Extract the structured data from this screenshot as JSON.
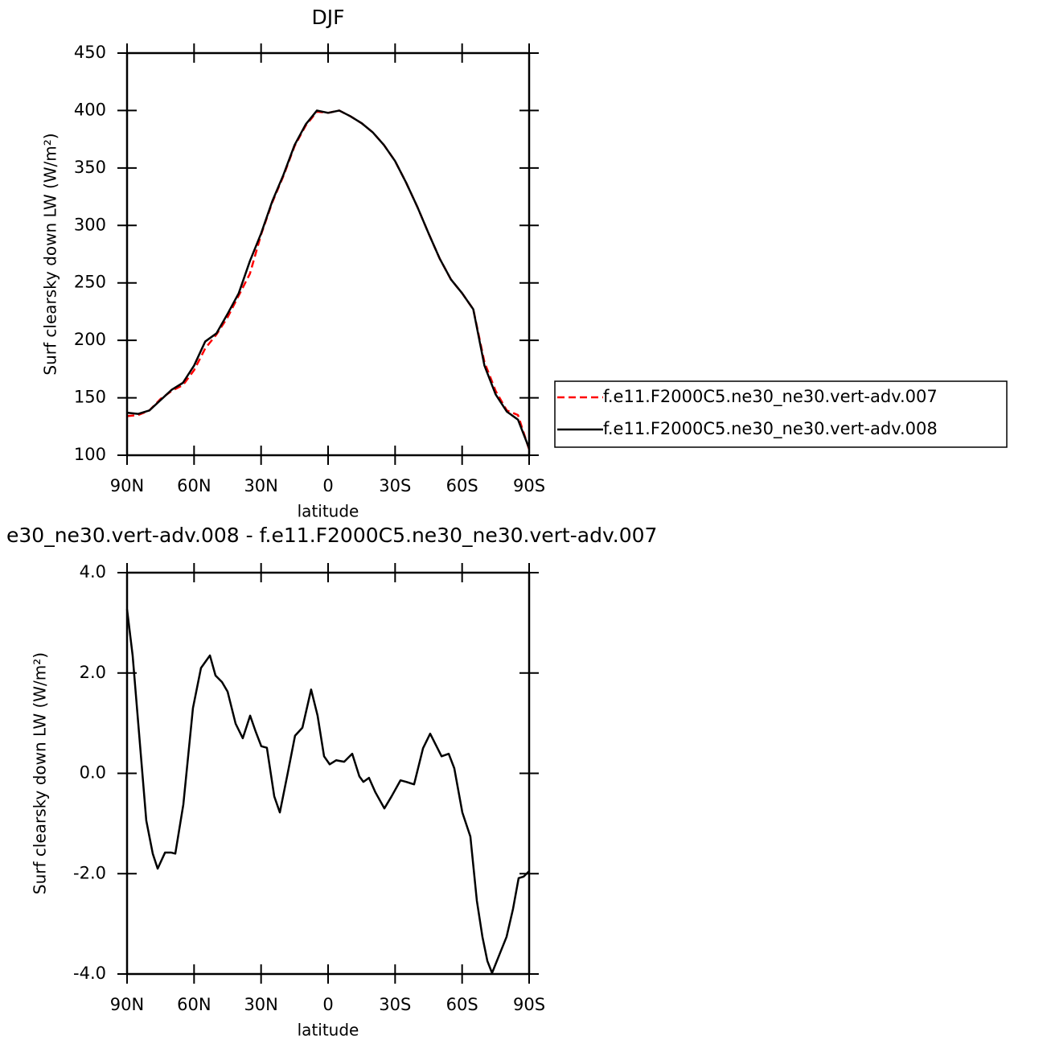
{
  "chart_data": [
    {
      "type": "line",
      "title": "DJF",
      "x_label": "latitude",
      "y_label": "Surf clearsky down LW (W/m²)",
      "xlim": [
        90,
        -90
      ],
      "ylim": [
        100,
        450
      ],
      "xticks": [
        {
          "value": 90,
          "label": "90N"
        },
        {
          "value": 60,
          "label": "60N"
        },
        {
          "value": 30,
          "label": "30N"
        },
        0,
        {
          "value": -30,
          "label": "30S"
        },
        {
          "value": -60,
          "label": "60S"
        },
        {
          "value": -90,
          "label": "90S"
        }
      ],
      "yticks": [
        100,
        150,
        200,
        250,
        300,
        350,
        400,
        450
      ],
      "legend": "right",
      "x": [
        90,
        85,
        80,
        75,
        70,
        65,
        60,
        55,
        50,
        45,
        40,
        35,
        30,
        25,
        20,
        15,
        10,
        5,
        0,
        -5,
        -10,
        -15,
        -20,
        -25,
        -30,
        -35,
        -40,
        -45,
        -50,
        -55,
        -60,
        -65,
        -70,
        -75,
        -80,
        -85,
        -90
      ],
      "series": [
        {
          "name": "f.e11.F2000C5.ne30_ne30.vert-adv.007",
          "color": "#ff0000",
          "dash": true,
          "values": [
            134,
            135,
            139,
            149,
            156,
            161,
            174,
            193,
            205,
            220,
            239,
            258,
            292,
            320,
            343,
            369,
            387,
            399,
            398,
            400,
            395,
            389,
            381,
            370,
            356,
            337,
            316,
            293,
            271,
            253,
            241,
            227,
            181,
            156,
            139,
            135,
            105
          ]
        },
        {
          "name": "f.e11.F2000C5.ne30_ne30.vert-adv.008",
          "color": "#000000",
          "dash": false,
          "values": [
            137,
            136,
            139,
            148,
            157,
            163,
            178,
            199,
            206,
            223,
            241,
            269,
            293,
            321,
            344,
            370,
            388,
            400,
            398,
            400,
            395,
            389,
            381,
            370,
            356,
            337,
            316,
            293,
            271,
            253,
            241,
            227,
            178,
            153,
            138,
            131,
            106
          ]
        }
      ]
    },
    {
      "type": "line",
      "title": "e30_ne30.vert-adv.008 - f.e11.F2000C5.ne30_ne30.vert-adv.007",
      "x_label": "latitude",
      "y_label": "Surf clearsky down LW (W/m²)",
      "xlim": [
        90,
        -90
      ],
      "ylim": [
        -4,
        4
      ],
      "xticks": [
        {
          "value": 90,
          "label": "90N"
        },
        {
          "value": 60,
          "label": "60N"
        },
        {
          "value": 30,
          "label": "30N"
        },
        0,
        {
          "value": -30,
          "label": "30S"
        },
        {
          "value": -60,
          "label": "60S"
        },
        {
          "value": -90,
          "label": "90S"
        }
      ],
      "yticks": [
        {
          "value": -4,
          "label": "-4.0"
        },
        {
          "value": -2,
          "label": "-2.0"
        },
        {
          "value": 0,
          "label": "0.0"
        },
        {
          "value": 2,
          "label": "2.0"
        },
        {
          "value": 4,
          "label": "4.0"
        }
      ],
      "x": [
        90,
        87.5,
        85,
        81.4,
        78.5,
        76.3,
        73,
        70.2,
        68.4,
        64.8,
        60.5,
        56.9,
        52.9,
        50.4,
        47.5,
        45,
        41.4,
        38.2,
        34.9,
        32.4,
        29.9,
        27.4,
        24.1,
        21.6,
        18,
        14.8,
        11.5,
        7.6,
        4.7,
        1.8,
        -0.7,
        -3.6,
        -7.2,
        -10.8,
        -14,
        -15.8,
        -18.3,
        -21.2,
        -25.2,
        -28.4,
        -32.4,
        -34.9,
        -38.5,
        -42.5,
        -45.7,
        -50.8,
        -54,
        -56.5,
        -60.1,
        -63.7,
        -66.6,
        -69.1,
        -71.3,
        -73.4,
        -77,
        -79.9,
        -82.8,
        -85.3,
        -87.5,
        -90
      ],
      "series": [
        {
          "color": "#000000",
          "dash": false,
          "values": [
            3.27,
            2.35,
            1.0,
            -0.94,
            -1.6,
            -1.9,
            -1.58,
            -1.58,
            -1.6,
            -0.62,
            1.3,
            2.1,
            2.35,
            1.95,
            1.82,
            1.63,
            0.99,
            0.7,
            1.15,
            0.83,
            0.54,
            0.51,
            -0.46,
            -0.78,
            0.02,
            0.75,
            0.91,
            1.67,
            1.15,
            0.34,
            0.18,
            0.26,
            0.23,
            0.39,
            -0.06,
            -0.17,
            -0.09,
            -0.38,
            -0.7,
            -0.46,
            -0.14,
            -0.17,
            -0.22,
            0.5,
            0.79,
            0.34,
            0.39,
            0.1,
            -0.78,
            -1.26,
            -2.54,
            -3.26,
            -3.74,
            -3.98,
            -3.58,
            -3.26,
            -2.7,
            -2.09,
            -2.06,
            -1.95
          ]
        }
      ]
    }
  ]
}
